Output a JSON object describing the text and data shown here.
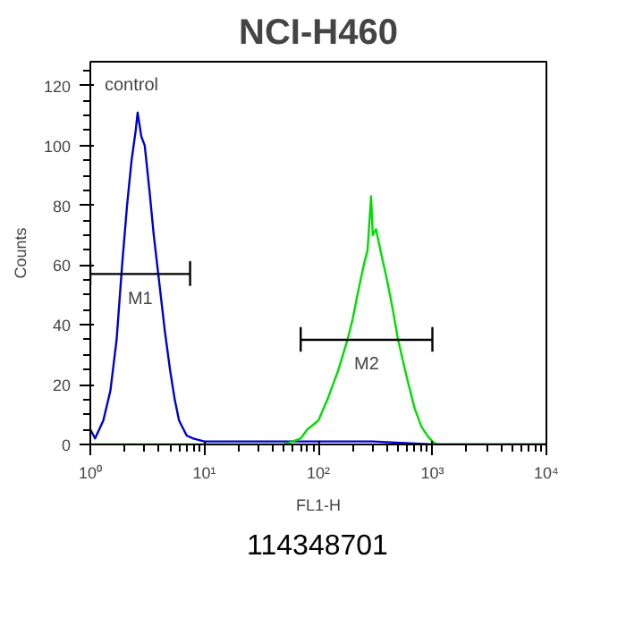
{
  "chart_data": {
    "type": "line",
    "title": "NCI-H460",
    "xlabel": "FL1-H",
    "ylabel": "Counts",
    "log": "x",
    "grid": false,
    "xlim": [
      1,
      10000
    ],
    "ylim": [
      0,
      128
    ],
    "xticks": [
      {
        "value": 1,
        "label": "10⁰"
      },
      {
        "value": 10,
        "label": "10¹"
      },
      {
        "value": 100,
        "label": "10²"
      },
      {
        "value": 1000,
        "label": "10³"
      },
      {
        "value": 10000,
        "label": "10⁴"
      }
    ],
    "yticks": [
      0,
      20,
      40,
      60,
      80,
      100,
      120
    ],
    "series": [
      {
        "color": "#0000cc",
        "x": [
          1,
          1.1,
          1.3,
          1.5,
          1.7,
          1.9,
          2.1,
          2.3,
          2.5,
          2.6,
          2.8,
          3.0,
          3.3,
          3.6,
          4,
          4.5,
          5,
          5.5,
          6,
          7,
          8,
          10,
          30,
          100,
          300,
          1000,
          10000
        ],
        "values": [
          5,
          2,
          8,
          18,
          35,
          60,
          80,
          95,
          105,
          111,
          103,
          100,
          85,
          70,
          55,
          38,
          25,
          15,
          8,
          3,
          2,
          1,
          1,
          1,
          1,
          0,
          0
        ]
      },
      {
        "color": "#00dd00",
        "x": [
          1,
          50,
          70,
          80,
          100,
          120,
          150,
          180,
          200,
          220,
          250,
          270,
          290,
          300,
          320,
          350,
          400,
          450,
          500,
          600,
          700,
          800,
          900,
          1000,
          1100,
          10000
        ],
        "values": [
          0,
          0,
          2,
          5,
          8,
          15,
          25,
          35,
          42,
          50,
          60,
          65,
          83,
          70,
          72,
          65,
          55,
          45,
          35,
          22,
          12,
          6,
          3,
          1,
          0,
          0
        ]
      },
      {
        "name": "M1",
        "color": "#000000",
        "x": [
          1,
          1,
          1,
          7.5,
          7.5,
          7.5
        ],
        "values": [
          53,
          61,
          57,
          57,
          61,
          53
        ]
      },
      {
        "name": "M2",
        "color": "#000000",
        "x": [
          70,
          70,
          70,
          1000,
          1000,
          1000
        ],
        "values": [
          31,
          39,
          35,
          35,
          39,
          31
        ]
      }
    ],
    "annotations": [
      "control",
      "114348701"
    ]
  }
}
